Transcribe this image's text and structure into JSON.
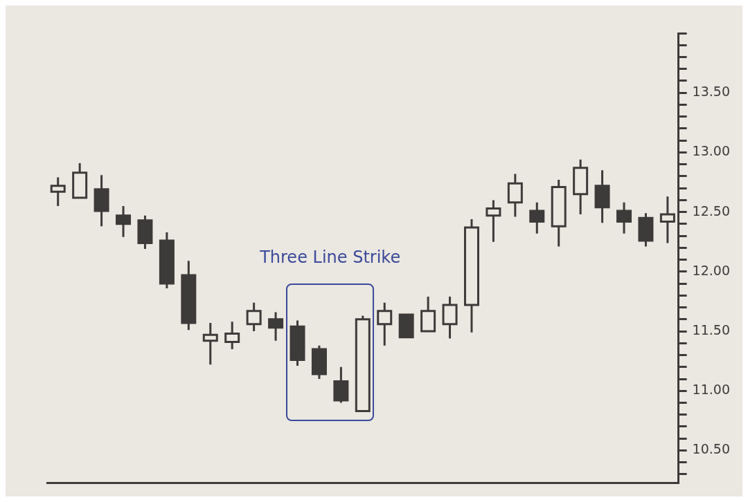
{
  "chart_data": {
    "type": "candlestick",
    "categories": [
      null,
      null,
      null,
      null,
      null,
      null,
      null,
      null,
      null,
      null,
      null,
      null,
      null,
      null,
      null,
      null,
      null,
      null,
      null,
      null,
      null,
      null,
      null,
      null,
      null,
      null,
      null,
      null,
      null
    ],
    "ohlc": [
      [
        12.67,
        12.79,
        12.55,
        12.72
      ],
      [
        12.62,
        12.91,
        12.62,
        12.83
      ],
      [
        12.69,
        12.81,
        12.38,
        12.51
      ],
      [
        12.47,
        12.55,
        12.29,
        12.4
      ],
      [
        12.43,
        12.47,
        12.19,
        12.24
      ],
      [
        12.26,
        12.33,
        11.86,
        11.9
      ],
      [
        11.97,
        12.09,
        11.51,
        11.57
      ],
      [
        11.42,
        11.57,
        11.22,
        11.47
      ],
      [
        11.41,
        11.58,
        11.35,
        11.48
      ],
      [
        11.56,
        11.74,
        11.5,
        11.67
      ],
      [
        11.6,
        11.66,
        11.42,
        11.53
      ],
      [
        11.54,
        11.59,
        11.21,
        11.26
      ],
      [
        11.35,
        11.38,
        11.1,
        11.14
      ],
      [
        11.08,
        11.2,
        10.9,
        10.92
      ],
      [
        10.83,
        11.63,
        10.83,
        11.6
      ],
      [
        11.56,
        11.74,
        11.38,
        11.67
      ],
      [
        11.64,
        11.64,
        11.45,
        11.45
      ],
      [
        11.5,
        11.79,
        11.5,
        11.67
      ],
      [
        11.56,
        11.79,
        11.44,
        11.72
      ],
      [
        11.72,
        12.44,
        11.49,
        12.37
      ],
      [
        12.47,
        12.6,
        12.25,
        12.53
      ],
      [
        12.58,
        12.82,
        12.46,
        12.74
      ],
      [
        12.51,
        12.58,
        12.32,
        12.42
      ],
      [
        12.38,
        12.77,
        12.21,
        12.71
      ],
      [
        12.65,
        12.94,
        12.48,
        12.87
      ],
      [
        12.72,
        12.85,
        12.41,
        12.54
      ],
      [
        12.51,
        12.58,
        12.32,
        12.42
      ],
      [
        12.45,
        12.49,
        12.21,
        12.26
      ],
      [
        12.42,
        12.63,
        12.24,
        12.48
      ]
    ],
    "ylim": [
      10.23,
      14.0
    ],
    "yticks": [
      {
        "value": 10.3,
        "label": null
      },
      {
        "value": 10.4,
        "label": null
      },
      {
        "value": 10.5,
        "label": "10.50"
      },
      {
        "value": 10.6,
        "label": null
      },
      {
        "value": 10.7,
        "label": null
      },
      {
        "value": 10.8,
        "label": null
      },
      {
        "value": 10.9,
        "label": null
      },
      {
        "value": 11,
        "label": "11.00"
      },
      {
        "value": 11.1,
        "label": null
      },
      {
        "value": 11.2,
        "label": null
      },
      {
        "value": 11.3,
        "label": null
      },
      {
        "value": 11.4,
        "label": null
      },
      {
        "value": 11.5,
        "label": "11.50"
      },
      {
        "value": 11.6,
        "label": null
      },
      {
        "value": 11.7,
        "label": null
      },
      {
        "value": 11.8,
        "label": null
      },
      {
        "value": 11.9,
        "label": null
      },
      {
        "value": 12,
        "label": "12.00"
      },
      {
        "value": 12.1,
        "label": null
      },
      {
        "value": 12.2,
        "label": null
      },
      {
        "value": 12.3,
        "label": null
      },
      {
        "value": 12.4,
        "label": null
      },
      {
        "value": 12.5,
        "label": "12.50"
      },
      {
        "value": 12.6,
        "label": null
      },
      {
        "value": 12.7,
        "label": null
      },
      {
        "value": 12.8,
        "label": null
      },
      {
        "value": 12.9,
        "label": null
      },
      {
        "value": 13,
        "label": "13.00"
      },
      {
        "value": 13.1,
        "label": null
      },
      {
        "value": 13.2,
        "label": null
      },
      {
        "value": 13.3,
        "label": null
      },
      {
        "value": 13.4,
        "label": null
      },
      {
        "value": 13.5,
        "label": "13.50"
      },
      {
        "value": 13.6,
        "label": null
      },
      {
        "value": 13.7,
        "label": null
      },
      {
        "value": 13.8,
        "label": null
      },
      {
        "value": 13.9,
        "label": null
      },
      {
        "value": 14,
        "label": null
      }
    ],
    "annotations": [
      "Three Line Strike"
    ]
  }
}
